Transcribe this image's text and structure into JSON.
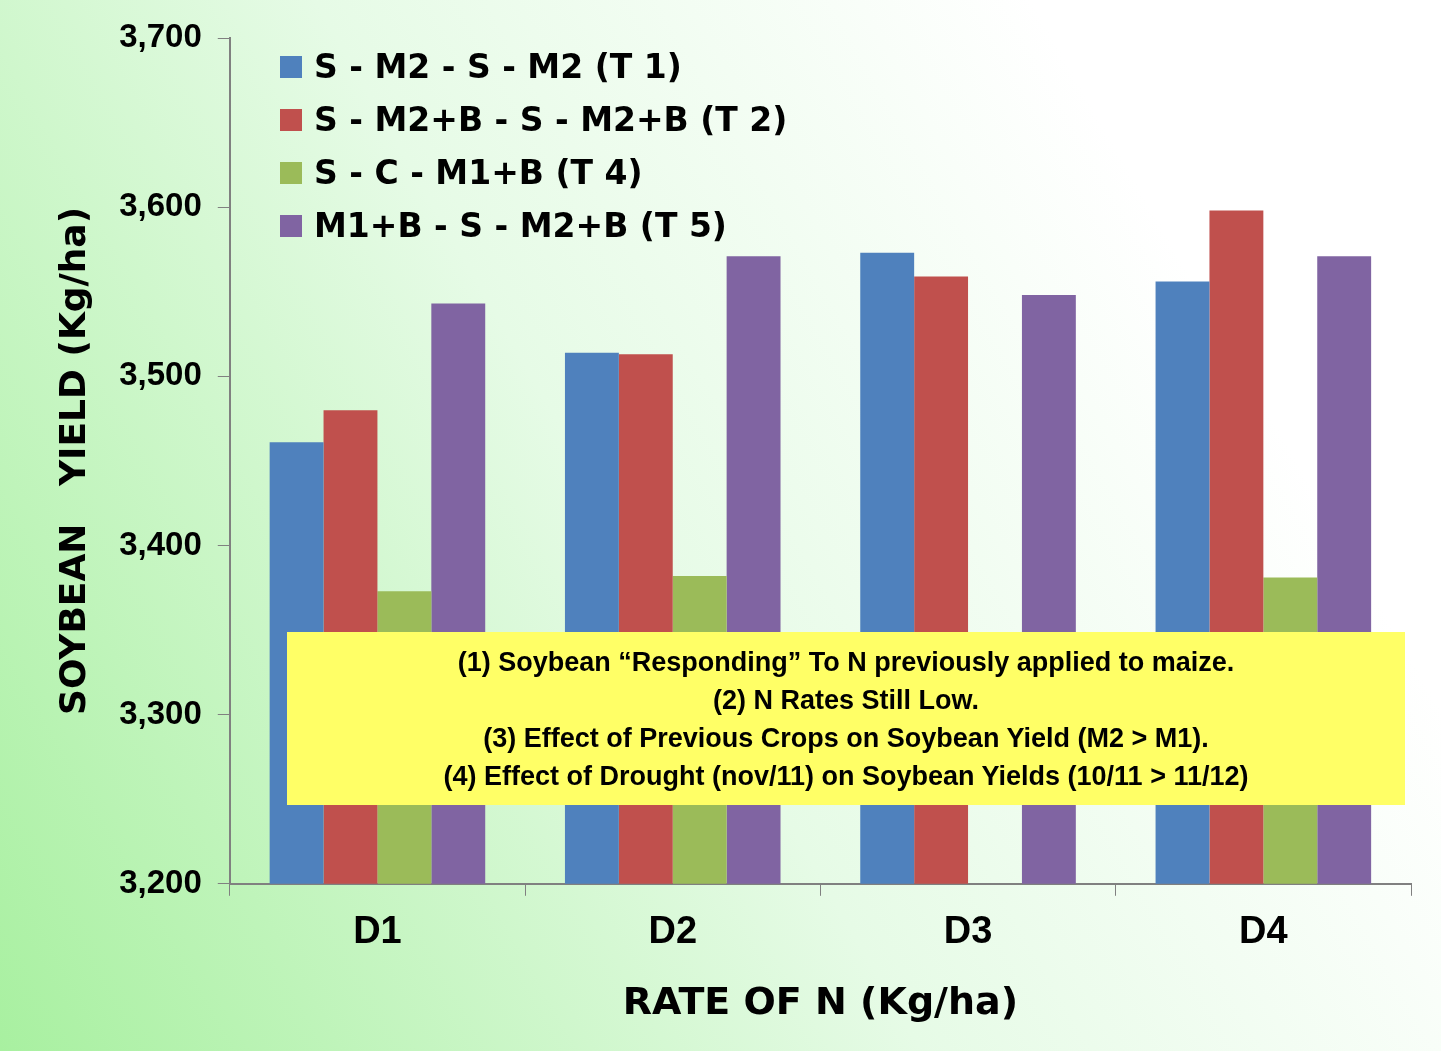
{
  "chart_data": {
    "type": "bar",
    "xlabel": "RATE OF N (Kg/ha)",
    "ylabel": "SOYBEAN   YIELD (Kg/ha)",
    "categories": [
      "D1",
      "D2",
      "D3",
      "D4"
    ],
    "series": [
      {
        "name": "S - M2 - S - M2 (T 1)",
        "color": "#4f81bd",
        "values": [
          3461,
          3514,
          3573,
          3556
        ]
      },
      {
        "name": "S - M2+B - S - M2+B (T 2)",
        "color": "#c0504d",
        "values": [
          3480,
          3513,
          3559,
          3598
        ]
      },
      {
        "name": "S - C - M1+B (T 4)",
        "color": "#9bbb59",
        "values": [
          3373,
          3382,
          null,
          3381
        ]
      },
      {
        "name": "M1+B - S - M2+B (T 5)",
        "color": "#8064a2",
        "values": [
          3543,
          3571,
          3548,
          3571
        ]
      }
    ],
    "ylim": [
      3200,
      3700
    ],
    "yticks": [
      {
        "value": 3200,
        "label": "3,200"
      },
      {
        "value": 3300,
        "label": "3,300"
      },
      {
        "value": 3400,
        "label": "3,400"
      },
      {
        "value": 3500,
        "label": "3,500"
      },
      {
        "value": 3600,
        "label": "3,600"
      },
      {
        "value": 3700,
        "label": "3,700"
      }
    ],
    "grid": false,
    "legend": "top left",
    "annotations": [
      "(1) Soybean “Responding” To N previously applied to maize.\n(2) N Rates Still Low.\n(3) Effect of Previous Crops on Soybean Yield (M2 > M1).\n(4) Effect of Drought (nov/11) on Soybean Yields (10/11 > 11/12)"
    ]
  }
}
